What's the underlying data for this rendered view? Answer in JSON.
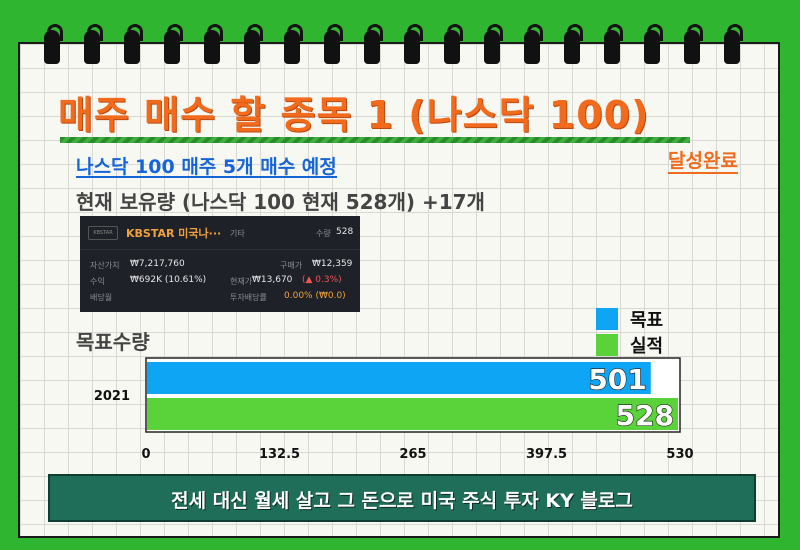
{
  "title": "매주 매수 할 종목 1 (나스닥 100)",
  "subtitle": "나스닥 100 매주 5개 매수 예정",
  "badge": "달성완료",
  "holding_line": "현재 보유량 (나스닥 100 현재 528개) +17개",
  "card": {
    "name": "KBSTAR 미국나···",
    "category": "기타",
    "qty_label": "수량",
    "qty_value": "528",
    "asset_label": "자산가치",
    "asset_value": "₩7,217,760",
    "buy_label": "구매가",
    "buy_value": "₩12,359",
    "profit_label": "수익",
    "profit_value": "₩692K (10.61%)",
    "current_label": "현재가",
    "current_value": "₩13,670",
    "current_change": "(▲ 0.3%)",
    "div_label": "배당월",
    "div_yield_label": "투자배당률",
    "div_yield_value": "0.00% (₩0.0)"
  },
  "goal_label": "목표수량",
  "colors": {
    "target": "#0ea5f5",
    "actual": "#5ad33a",
    "title": "#f26a1b",
    "footer": "#1f6e5a"
  },
  "chart_data": {
    "type": "bar",
    "orientation": "horizontal",
    "categories": [
      "2021"
    ],
    "series": [
      {
        "name": "목표",
        "values": [
          501
        ]
      },
      {
        "name": "실적",
        "values": [
          528
        ]
      }
    ],
    "xlim": [
      0,
      530
    ],
    "xticks": [
      "0",
      "132.5",
      "265",
      "397.5",
      "530"
    ],
    "legend": "top-right"
  },
  "footer": "전세 대신 월세 살고 그 돈으로 미국 주식 투자   KY 블로그"
}
